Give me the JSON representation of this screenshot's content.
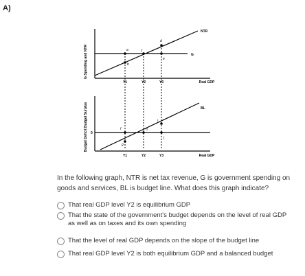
{
  "question": {
    "number": "A)",
    "prompt": "In the following graph, NTR is net tax revenue, G is government spending on goods and services, BL is budget line. What does this graph indicate?"
  },
  "figure": {
    "top_panel": {
      "y_axis_label": "G Spending and NTR",
      "x_axis_label": "Real GDP",
      "lines": {
        "rising": "NTR",
        "flat": "G"
      },
      "points": [
        "a",
        "b",
        "c",
        "d",
        "e"
      ],
      "x_ticks": [
        "Y1",
        "Y2",
        "Y3"
      ]
    },
    "bottom_panel": {
      "y_axis_label": "Budget Deficit   Budget Surplus",
      "x_axis_label": "Real GDP",
      "lines": {
        "rising": "BL"
      },
      "origin_label": "0",
      "points": [
        "f",
        "g",
        "h",
        "i",
        "j"
      ],
      "x_ticks": [
        "Y1",
        "Y2",
        "Y3"
      ]
    }
  },
  "options": [
    {
      "label": "That real GDP level Y2 is equilibrium GDP",
      "selected": false
    },
    {
      "label": "That the state of the government's budget depends on the level of real GDP as well as on taxes and its own spending",
      "selected": false
    },
    {
      "label": "That the level of real GDP depends on the slope of the budget line",
      "selected": false
    },
    {
      "label": "That real GDP level Y2 is both equilibrium GDP and a balanced budget",
      "selected": false
    }
  ],
  "colors": {
    "text": "#333333",
    "radio_border": "#888888",
    "line": "#000000"
  }
}
